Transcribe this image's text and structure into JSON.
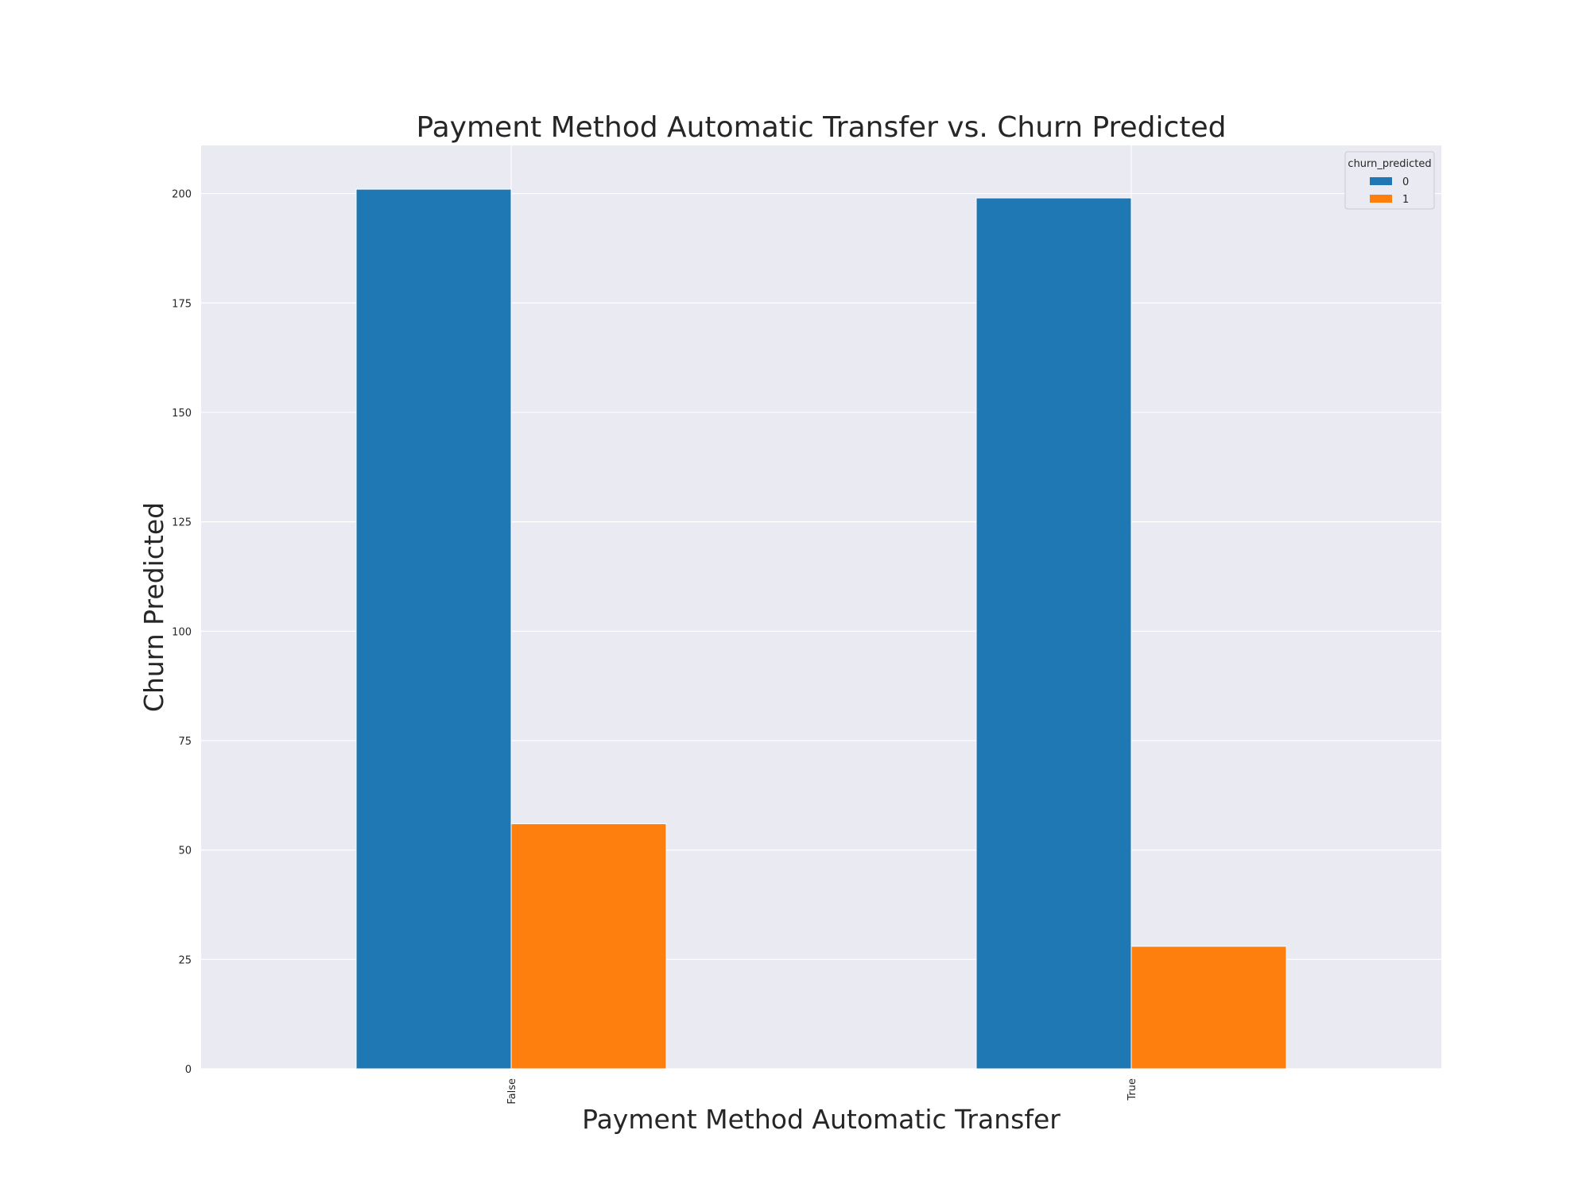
{
  "chart_data": {
    "type": "bar",
    "title": "Payment Method Automatic Transfer vs. Churn Predicted",
    "xlabel": "Payment Method Automatic Transfer",
    "ylabel": "Churn Predicted",
    "categories": [
      "False",
      "True"
    ],
    "series": [
      {
        "name": "0",
        "values": [
          201,
          199
        ],
        "color": "#1f77b4"
      },
      {
        "name": "1",
        "values": [
          56,
          28
        ],
        "color": "#ff7f0e"
      }
    ],
    "ylim": [
      0,
      211
    ],
    "yticks": [
      0,
      25,
      50,
      75,
      100,
      125,
      150,
      175,
      200
    ],
    "grid": true,
    "legend": {
      "title": "churn_predicted",
      "position": "top-right"
    },
    "background_color": "#eaeaf2"
  }
}
